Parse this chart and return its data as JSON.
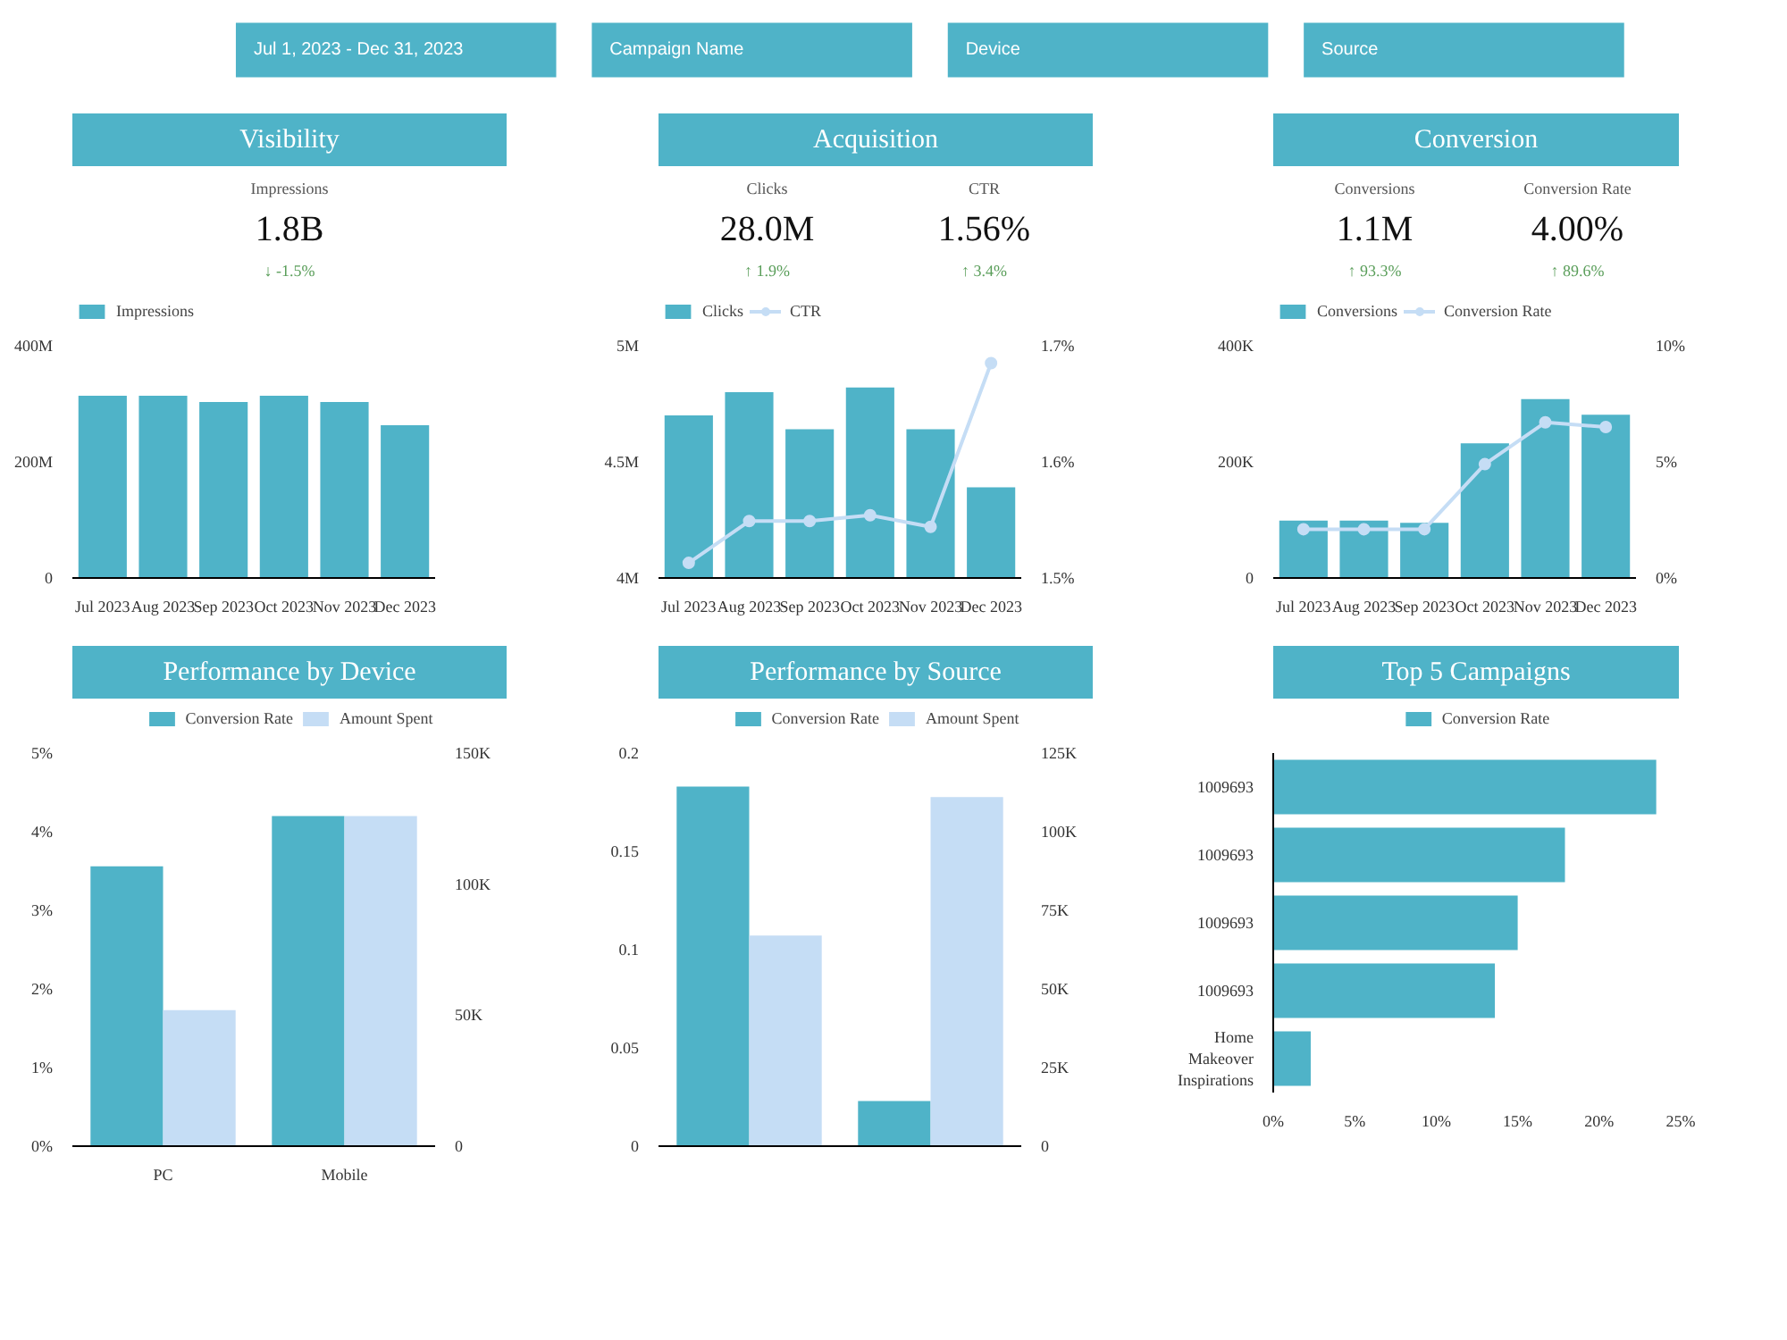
{
  "chart_data": [
    {
      "type": "other",
      "annotations": [
        "Jul 1, 2023 - Dec 31, 2023",
        "Campaign Name",
        "Device",
        "Source"
      ]
    },
    {
      "type": "bar",
      "title": "Visibility",
      "annotations": [
        "Impressions",
        "1.8B",
        "↓ -1.5%"
      ],
      "categories": [
        "Jul 2023",
        "Aug 2023",
        "Sep 2023",
        "Oct 2023",
        "Nov 2023",
        "Dec 2023"
      ],
      "series": [
        {
          "name": "Impressions",
          "color": "#4fb3c8",
          "values": [
            314000000,
            314000000,
            303000000,
            314000000,
            303000000,
            263000000
          ]
        }
      ],
      "ylim": [
        0,
        400000000
      ],
      "yticks": [
        0,
        {
          "value": 200000000,
          "label": "200M"
        },
        {
          "value": 400000000,
          "label": "400M"
        }
      ],
      "legend": "top left"
    },
    {
      "type": "bar",
      "title": "Acquisition",
      "annotations": [
        "Clicks",
        "28.0M",
        "↑ 1.9%",
        "CTR",
        "1.56%",
        "↑ 3.4%"
      ],
      "categories": [
        "Jul 2023",
        "Aug 2023",
        "Sep 2023",
        "Oct 2023",
        "Nov 2023",
        "Dec 2023"
      ],
      "series": [
        {
          "name": "Clicks",
          "color": "#4fb3c8",
          "values": [
            4700000,
            4800000,
            4640000,
            4820000,
            4640000,
            4390000
          ]
        },
        {
          "name": "CTR",
          "type": "line",
          "axis": "y2",
          "color": "#c5ddf5",
          "values": [
            1.513,
            1.549,
            1.549,
            1.554,
            1.544,
            1.685
          ]
        }
      ],
      "ylim": [
        4000000,
        5000000
      ],
      "yticks": [
        {
          "value": 4000000,
          "label": "4M"
        },
        {
          "value": 4500000,
          "label": "4.5M"
        },
        {
          "value": 5000000,
          "label": "5M"
        }
      ],
      "y2lim": [
        1.5,
        1.7
      ],
      "y2ticks": [
        {
          "value": 1.5,
          "label": "1.5%"
        },
        {
          "value": 1.6,
          "label": "1.6%"
        },
        {
          "value": 1.7,
          "label": "1.7%"
        }
      ],
      "marker": "circle",
      "legend": "top left"
    },
    {
      "type": "bar",
      "title": "Conversion",
      "annotations": [
        "Conversions",
        "1.1M",
        "↑ 93.3%",
        "Conversion Rate",
        "4.00%",
        "↑ 89.6%"
      ],
      "categories": [
        "Jul 2023",
        "Aug 2023",
        "Sep 2023",
        "Oct 2023",
        "Nov 2023",
        "Dec 2023"
      ],
      "series": [
        {
          "name": "Conversions",
          "color": "#4fb3c8",
          "values": [
            99000,
            99000,
            95000,
            232000,
            308000,
            281000
          ]
        },
        {
          "name": "Conversion Rate",
          "type": "line",
          "axis": "y2",
          "color": "#c5ddf5",
          "values": [
            2.1,
            2.1,
            2.1,
            4.9,
            6.7,
            6.5
          ]
        }
      ],
      "ylim": [
        0,
        400000
      ],
      "yticks": [
        0,
        {
          "value": 200000,
          "label": "200K"
        },
        {
          "value": 400000,
          "label": "400K"
        }
      ],
      "y2lim": [
        0,
        10
      ],
      "y2ticks": [
        {
          "value": 0,
          "label": "0%"
        },
        {
          "value": 5,
          "label": "5%"
        },
        {
          "value": 10,
          "label": "10%"
        }
      ],
      "marker": "circle",
      "legend": "top left"
    },
    {
      "type": "bar",
      "title": "Performance by Device",
      "categories": [
        "PC",
        "Mobile"
      ],
      "series": [
        {
          "name": "Conversion Rate",
          "color": "#4fb3c8",
          "values": [
            3.56,
            4.2
          ]
        },
        {
          "name": "Amount Spent",
          "axis": "y2",
          "color": "#c5ddf5",
          "values": [
            51900,
            126000
          ]
        }
      ],
      "ylim": [
        0,
        5
      ],
      "yticks": [
        {
          "value": 0,
          "label": "0%"
        },
        {
          "value": 1,
          "label": "1%"
        },
        {
          "value": 2,
          "label": "2%"
        },
        {
          "value": 3,
          "label": "3%"
        },
        {
          "value": 4,
          "label": "4%"
        },
        {
          "value": 5,
          "label": "5%"
        }
      ],
      "y2lim": [
        0,
        150000
      ],
      "y2ticks": [
        0,
        {
          "value": 50000,
          "label": "50K"
        },
        {
          "value": 100000,
          "label": "100K"
        },
        {
          "value": 150000,
          "label": "150K"
        }
      ],
      "legend": "top"
    },
    {
      "type": "bar",
      "title": "Performance by Source",
      "categories": [
        null,
        null
      ],
      "series": [
        {
          "name": "Conversion Rate",
          "color": "#4fb3c8",
          "values": [
            0.183,
            0.023
          ]
        },
        {
          "name": "Amount Spent",
          "axis": "y2",
          "color": "#c5ddf5",
          "values": [
            67000,
            111000
          ]
        }
      ],
      "ylim": [
        0,
        0.2
      ],
      "yticks": [
        0,
        0.05,
        0.1,
        0.15,
        0.2
      ],
      "y2lim": [
        0,
        125000
      ],
      "y2ticks": [
        0,
        {
          "value": 25000,
          "label": "25K"
        },
        {
          "value": 50000,
          "label": "50K"
        },
        {
          "value": 75000,
          "label": "75K"
        },
        {
          "value": 100000,
          "label": "100K"
        },
        {
          "value": 125000,
          "label": "125K"
        }
      ],
      "legend": "top"
    },
    {
      "type": "bar",
      "title": "Top 5 Campaigns",
      "orientation": "horizontal",
      "categories": [
        "1009693",
        "1009693",
        "1009693",
        "1009693",
        "Home Makeover Inspirations"
      ],
      "series": [
        {
          "name": "Conversion Rate",
          "color": "#4fb3c8",
          "values": [
            23.5,
            17.9,
            15.0,
            13.6,
            2.3
          ]
        }
      ],
      "xlim": [
        0,
        25
      ],
      "xticks": [
        {
          "value": 0,
          "label": "0%"
        },
        {
          "value": 5,
          "label": "5%"
        },
        {
          "value": 10,
          "label": "10%"
        },
        {
          "value": 15,
          "label": "15%"
        },
        {
          "value": 20,
          "label": "20%"
        },
        {
          "value": 25,
          "label": "25%"
        }
      ],
      "legend": "top"
    }
  ]
}
